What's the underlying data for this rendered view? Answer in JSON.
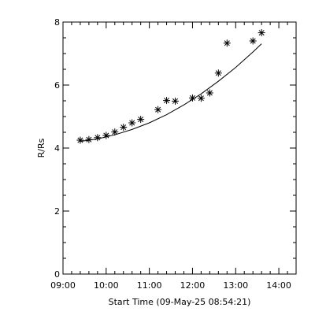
{
  "chart_data": {
    "type": "scatter",
    "title": "",
    "xlabel": "Start Time (09-May-25 08:54:21)",
    "ylabel": "R/Rs",
    "x_tick_labels": [
      "09:00",
      "10:00",
      "11:00",
      "12:00",
      "13:00",
      "14:00"
    ],
    "y_tick_labels": [
      "0",
      "2",
      "4",
      "6",
      "8"
    ],
    "x_ticks": [
      "09:00",
      "10:00",
      "11:00",
      "12:00",
      "13:00",
      "14:00"
    ],
    "y_ticks": [
      0,
      2,
      4,
      6,
      8
    ],
    "xlim": [
      "09:00",
      "14:24"
    ],
    "ylim": [
      0,
      8
    ],
    "grid": false,
    "series": [
      {
        "marker": "asterisk",
        "points": [
          {
            "x": "09:24",
            "y": 4.25
          },
          {
            "x": "09:36",
            "y": 4.27
          },
          {
            "x": "09:48",
            "y": 4.33
          },
          {
            "x": "10:00",
            "y": 4.4
          },
          {
            "x": "10:12",
            "y": 4.51
          },
          {
            "x": "10:24",
            "y": 4.66
          },
          {
            "x": "10:36",
            "y": 4.8
          },
          {
            "x": "10:48",
            "y": 4.91
          },
          {
            "x": "11:12",
            "y": 5.22
          },
          {
            "x": "11:24",
            "y": 5.51
          },
          {
            "x": "11:36",
            "y": 5.49
          },
          {
            "x": "12:00",
            "y": 5.59
          },
          {
            "x": "12:12",
            "y": 5.58
          },
          {
            "x": "12:24",
            "y": 5.75
          },
          {
            "x": "12:36",
            "y": 6.38
          },
          {
            "x": "12:48",
            "y": 7.33
          },
          {
            "x": "13:24",
            "y": 7.4
          },
          {
            "x": "13:36",
            "y": 7.66
          }
        ]
      },
      {
        "marker": "none",
        "style": "line",
        "points": [
          {
            "x": "09:24",
            "y": 4.21
          },
          {
            "x": "09:48",
            "y": 4.29
          },
          {
            "x": "10:12",
            "y": 4.42
          },
          {
            "x": "10:36",
            "y": 4.59
          },
          {
            "x": "11:00",
            "y": 4.8
          },
          {
            "x": "11:24",
            "y": 5.06
          },
          {
            "x": "11:48",
            "y": 5.37
          },
          {
            "x": "12:12",
            "y": 5.72
          },
          {
            "x": "12:36",
            "y": 6.12
          },
          {
            "x": "13:00",
            "y": 6.56
          },
          {
            "x": "13:24",
            "y": 7.05
          },
          {
            "x": "13:36",
            "y": 7.31
          }
        ]
      }
    ]
  }
}
